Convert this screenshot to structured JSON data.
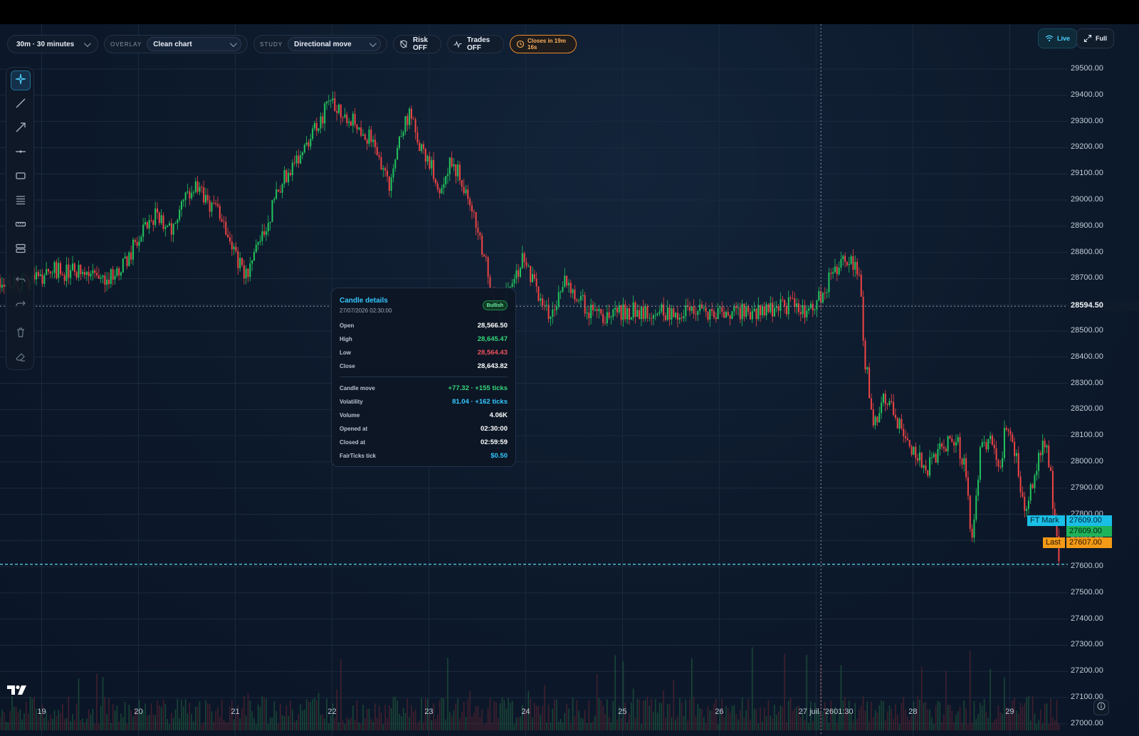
{
  "header": {
    "interval_label": "30m · 30 minutes",
    "overlay_label": "OVERLAY",
    "overlay_value": "Clean chart",
    "study_label": "STUDY",
    "study_value": "Directional move",
    "risk_label": "Risk OFF",
    "trades_label": "Trades OFF",
    "closes_label": "Closes in 19m 16s"
  },
  "right_controls": {
    "live_label": "Live",
    "full_label": "Full"
  },
  "tooltip": {
    "title": "Candle details",
    "datetime": "27/07/2026 02:30:00",
    "badge": "Bullish",
    "rows": [
      {
        "label": "Open",
        "value": "28,566.50",
        "color": "#ffffff"
      },
      {
        "label": "High",
        "value": "28,645.47",
        "color": "#37d67a"
      },
      {
        "label": "Low",
        "value": "28,564.43",
        "color": "#f0525a"
      },
      {
        "label": "Close",
        "value": "28,643.82",
        "color": "#ffffff"
      }
    ],
    "stats": [
      {
        "label": "Candle move",
        "value": "+77.32 · +155 ticks",
        "color": "#37d67a"
      },
      {
        "label": "Volatility",
        "value": "81.04 · +162 ticks",
        "color": "#35c8ff"
      },
      {
        "label": "Volume",
        "value": "4.06K",
        "color": "#ffffff"
      },
      {
        "label": "Opened at",
        "value": "02:30:00",
        "color": "#ffffff"
      },
      {
        "label": "Closed at",
        "value": "02:59:59",
        "color": "#ffffff"
      },
      {
        "label": "FairTicks tick",
        "value": "$0.50",
        "color": "#35c8ff"
      }
    ]
  },
  "price_tags": {
    "crosshair_price": "28594.50",
    "ft_mark_label": "FT Mark",
    "ft_mark_value": "27609.00",
    "current_value": "27609.00",
    "last_label": "Last",
    "last_value": "27607.00"
  },
  "chart_data": {
    "type": "candlestick",
    "y_tick_labels": [
      "29500.00",
      "29400.00",
      "29300.00",
      "29200.00",
      "29100.00",
      "29000.00",
      "28900.00",
      "28800.00",
      "28700.00",
      "28600.00",
      "28500.00",
      "28400.00",
      "28300.00",
      "28200.00",
      "28100.00",
      "28000.00",
      "27900.00",
      "27800.00",
      "27700.00",
      "27600.00",
      "27500.00",
      "27400.00",
      "27300.00",
      "27200.00",
      "27100.00",
      "27000.00"
    ],
    "y_ticks": [
      29500,
      29400,
      29300,
      29200,
      29100,
      29000,
      28900,
      28800,
      28700,
      28600,
      28500,
      28400,
      28300,
      28200,
      28100,
      28000,
      27900,
      27800,
      27700,
      27600,
      27500,
      27400,
      27300,
      27200,
      27100,
      27000
    ],
    "ylim": [
      26975,
      29590
    ],
    "x_tick_labels": [
      "19",
      "20",
      "21",
      "22",
      "23",
      "24",
      "25",
      "26",
      "27 juil. '26",
      "01:30",
      "28",
      "29"
    ],
    "x_tick_days": [
      19,
      20,
      21,
      22,
      23,
      24,
      25,
      26,
      27,
      27.0625,
      28,
      29
    ],
    "xlim": [
      18.57,
      29.6
    ],
    "price_path": [
      [
        18.57,
        28700
      ],
      [
        18.8,
        28680
      ],
      [
        19.1,
        28730
      ],
      [
        19.4,
        28720
      ],
      [
        19.6,
        28700
      ],
      [
        19.8,
        28720
      ],
      [
        20.0,
        28850
      ],
      [
        20.2,
        28950
      ],
      [
        20.35,
        28880
      ],
      [
        20.55,
        29050
      ],
      [
        20.7,
        29000
      ],
      [
        20.85,
        28950
      ],
      [
        20.95,
        28850
      ],
      [
        21.1,
        28700
      ],
      [
        21.3,
        28880
      ],
      [
        21.45,
        29050
      ],
      [
        21.7,
        29200
      ],
      [
        21.9,
        29320
      ],
      [
        22.0,
        29380
      ],
      [
        22.15,
        29330
      ],
      [
        22.3,
        29280
      ],
      [
        22.45,
        29200
      ],
      [
        22.6,
        29050
      ],
      [
        22.7,
        29250
      ],
      [
        22.8,
        29330
      ],
      [
        22.9,
        29200
      ],
      [
        23.0,
        29150
      ],
      [
        23.1,
        29050
      ],
      [
        23.25,
        29150
      ],
      [
        23.45,
        28950
      ],
      [
        23.6,
        28750
      ],
      [
        23.7,
        28550
      ],
      [
        23.85,
        28700
      ],
      [
        24.0,
        28780
      ],
      [
        24.15,
        28600
      ],
      [
        24.25,
        28550
      ],
      [
        24.4,
        28700
      ],
      [
        24.55,
        28620
      ],
      [
        24.7,
        28560
      ],
      [
        24.85,
        28560
      ],
      [
        25.2,
        28580
      ],
      [
        25.6,
        28570
      ],
      [
        26.0,
        28565
      ],
      [
        26.4,
        28580
      ],
      [
        26.75,
        28600
      ],
      [
        26.9,
        28570
      ],
      [
        27.05,
        28640
      ],
      [
        27.15,
        28700
      ],
      [
        27.25,
        28750
      ],
      [
        27.35,
        28780
      ],
      [
        27.45,
        28720
      ],
      [
        27.5,
        28400
      ],
      [
        27.6,
        28150
      ],
      [
        27.7,
        28250
      ],
      [
        27.8,
        28180
      ],
      [
        27.9,
        28100
      ],
      [
        28.0,
        28050
      ],
      [
        28.15,
        27980
      ],
      [
        28.3,
        28050
      ],
      [
        28.45,
        28100
      ],
      [
        28.55,
        27950
      ],
      [
        28.6,
        27700
      ],
      [
        28.7,
        28050
      ],
      [
        28.8,
        28100
      ],
      [
        28.9,
        27950
      ],
      [
        28.95,
        28150
      ],
      [
        29.05,
        28050
      ],
      [
        29.15,
        27800
      ],
      [
        29.25,
        27950
      ],
      [
        29.35,
        28100
      ],
      [
        29.42,
        27950
      ],
      [
        29.48,
        27700
      ],
      [
        29.52,
        27609
      ]
    ],
    "tooltip_candle": {
      "open": 28566.5,
      "high": 28645.47,
      "low": 28564.43,
      "close": 28643.82,
      "volume": 4060
    },
    "crosshair": {
      "x_day": 27.05,
      "price": 28594.5
    },
    "last_price": 27609,
    "grid": true,
    "up_color": "#22c55e",
    "down_color": "#ef4444"
  }
}
